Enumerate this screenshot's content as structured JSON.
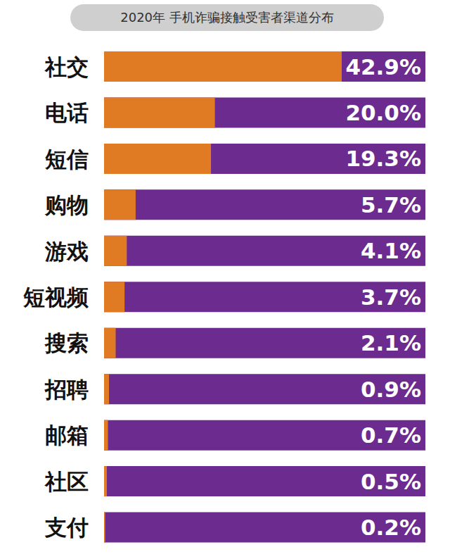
{
  "chart_data": {
    "type": "bar",
    "title": "2020年 手机诈骗接触受害者渠道分布",
    "categories": [
      "社交",
      "电话",
      "短信",
      "购物",
      "游戏",
      "短视频",
      "搜索",
      "招聘",
      "邮箱",
      "社区",
      "支付"
    ],
    "values": [
      42.9,
      20.0,
      19.3,
      5.7,
      4.1,
      3.7,
      2.1,
      0.9,
      0.7,
      0.5,
      0.2
    ],
    "value_labels": [
      "42.9%",
      "20.0%",
      "19.3%",
      "5.7%",
      "4.1%",
      "3.7%",
      "2.1%",
      "0.9%",
      "0.7%",
      "0.5%",
      "0.2%"
    ],
    "color": "#e07b24",
    "xlim": [
      0,
      58
    ],
    "orientation": "horizontal",
    "data_labels": true,
    "tick_labels": "y"
  }
}
